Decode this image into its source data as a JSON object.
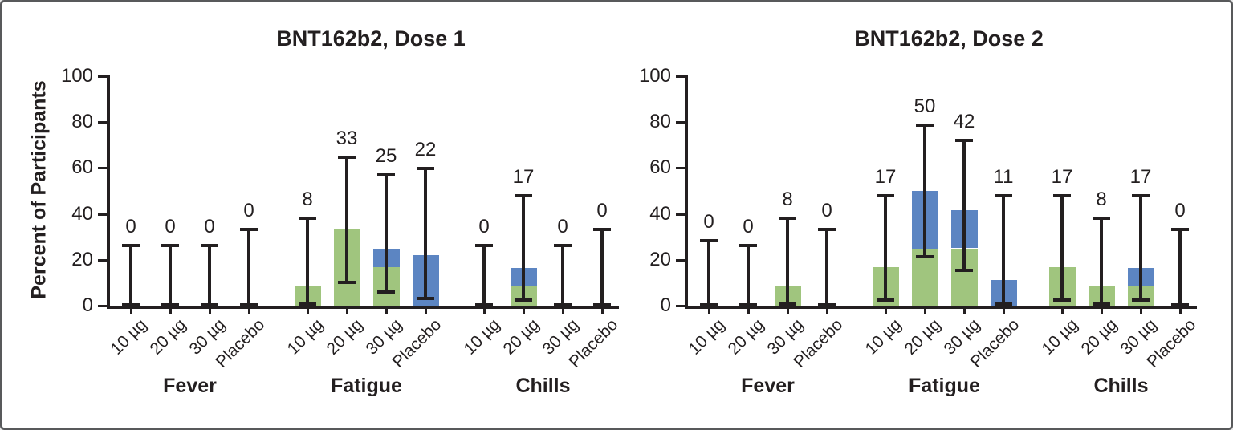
{
  "figure": {
    "background": "#ffffff",
    "frame_border_color": "#58595b",
    "axis_color": "#231f20",
    "text_color": "#231f20"
  },
  "chart_data": {
    "type": "bar",
    "stacked": true,
    "grid": false,
    "legend": "none visible",
    "ylabel": "Percent of Participants",
    "ylim": [
      0,
      100
    ],
    "yticks": [
      0,
      20,
      40,
      60,
      80,
      100
    ],
    "error_bars": "black whiskers with end caps, values in ci arrays [low, high] in percent",
    "segment_colors": {
      "green": "#a0c57e",
      "blue": "#5c85c2"
    },
    "dose_labels": [
      "10 µg",
      "20 µg",
      "30 µg",
      "Placebo"
    ],
    "group_labels": [
      "Fever",
      "Fatigue",
      "Chills"
    ],
    "panels": [
      {
        "title": "BNT162b2, Dose 1",
        "groups": [
          {
            "label": "Fever",
            "bars": [
              {
                "x": "10 µg",
                "total_label": "0",
                "green": 0,
                "blue": 0,
                "ci": [
                  0,
                  26.5
                ]
              },
              {
                "x": "20 µg",
                "total_label": "0",
                "green": 0,
                "blue": 0,
                "ci": [
                  0,
                  26.5
                ]
              },
              {
                "x": "30 µg",
                "total_label": "0",
                "green": 0,
                "blue": 0,
                "ci": [
                  0,
                  26.5
                ]
              },
              {
                "x": "Placebo",
                "total_label": "0",
                "green": 0,
                "blue": 0,
                "ci": [
                  0,
                  33.6
                ]
              }
            ]
          },
          {
            "label": "Fatigue",
            "bars": [
              {
                "x": "10 µg",
                "total_label": "8",
                "green": 8.3,
                "blue": 0,
                "ci": [
                  0.2,
                  38.5
                ]
              },
              {
                "x": "20 µg",
                "total_label": "33",
                "green": 33.3,
                "blue": 0,
                "ci": [
                  9.9,
                  65.1
                ]
              },
              {
                "x": "30 µg",
                "total_label": "25",
                "green": 16.7,
                "blue": 8.3,
                "ci": [
                  5.5,
                  57.2
                ]
              },
              {
                "x": "Placebo",
                "total_label": "22",
                "green": 0,
                "blue": 22.2,
                "ci": [
                  2.8,
                  60.0
                ]
              }
            ]
          },
          {
            "label": "Chills",
            "bars": [
              {
                "x": "10 µg",
                "total_label": "0",
                "green": 0,
                "blue": 0,
                "ci": [
                  0,
                  26.5
                ]
              },
              {
                "x": "20 µg",
                "total_label": "17",
                "green": 8.3,
                "blue": 8.3,
                "ci": [
                  2.1,
                  48.4
                ]
              },
              {
                "x": "30 µg",
                "total_label": "0",
                "green": 0,
                "blue": 0,
                "ci": [
                  0,
                  26.5
                ]
              },
              {
                "x": "Placebo",
                "total_label": "0",
                "green": 0,
                "blue": 0,
                "ci": [
                  0,
                  33.6
                ]
              }
            ]
          }
        ]
      },
      {
        "title": "BNT162b2, Dose 2",
        "groups": [
          {
            "label": "Fever",
            "bars": [
              {
                "x": "10 µg",
                "total_label": "0",
                "green": 0,
                "blue": 0,
                "ci": [
                  0,
                  28.5
                ]
              },
              {
                "x": "20 µg",
                "total_label": "0",
                "green": 0,
                "blue": 0,
                "ci": [
                  0,
                  26.5
                ]
              },
              {
                "x": "30 µg",
                "total_label": "8",
                "green": 8.3,
                "blue": 0,
                "ci": [
                  0.2,
                  38.5
                ]
              },
              {
                "x": "Placebo",
                "total_label": "0",
                "green": 0,
                "blue": 0,
                "ci": [
                  0,
                  33.6
                ]
              }
            ]
          },
          {
            "label": "Fatigue",
            "bars": [
              {
                "x": "10 µg",
                "total_label": "17",
                "green": 16.7,
                "blue": 0,
                "ci": [
                  2.1,
                  48.4
                ]
              },
              {
                "x": "20 µg",
                "total_label": "50",
                "green": 25.0,
                "blue": 25.0,
                "ci": [
                  21.1,
                  78.9
                ]
              },
              {
                "x": "30 µg",
                "total_label": "42",
                "green": 25.0,
                "blue": 16.7,
                "ci": [
                  15.2,
                  72.3
                ]
              },
              {
                "x": "Placebo",
                "total_label": "11",
                "green": 0,
                "blue": 11.1,
                "ci": [
                  0.3,
                  48.2
                ]
              }
            ]
          },
          {
            "label": "Chills",
            "bars": [
              {
                "x": "10 µg",
                "total_label": "17",
                "green": 16.7,
                "blue": 0,
                "ci": [
                  2.1,
                  48.4
                ]
              },
              {
                "x": "20 µg",
                "total_label": "8",
                "green": 8.3,
                "blue": 0,
                "ci": [
                  0.2,
                  38.5
                ]
              },
              {
                "x": "30 µg",
                "total_label": "17",
                "green": 8.3,
                "blue": 8.3,
                "ci": [
                  2.1,
                  48.4
                ]
              },
              {
                "x": "Placebo",
                "total_label": "0",
                "green": 0,
                "blue": 0,
                "ci": [
                  0,
                  33.6
                ]
              }
            ]
          }
        ]
      }
    ]
  }
}
